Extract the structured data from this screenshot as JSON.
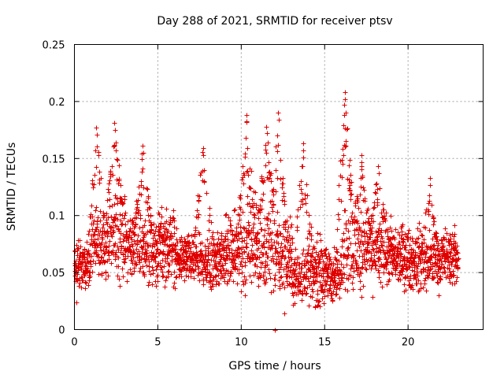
{
  "chart_data": {
    "type": "scatter",
    "title": "Day 288 of 2021, SRMTID for receiver ptsv",
    "xlabel": "GPS time / hours",
    "ylabel": "SRMTID / TECUs",
    "xlim": [
      0,
      24.5
    ],
    "ylim": [
      0,
      0.25
    ],
    "xticks": [
      0,
      5,
      10,
      15,
      20
    ],
    "yticks": [
      0,
      0.05,
      0.1,
      0.15,
      0.2,
      0.25
    ],
    "xtick_labels": [
      "0",
      "5",
      "10",
      "15",
      "20"
    ],
    "ytick_labels": [
      "0",
      "0.05",
      "0.1",
      "0.15",
      "0.2",
      "0.25"
    ],
    "grid": true,
    "marker": "+",
    "color": "#e00000",
    "series": [
      {
        "name": "SRMTID",
        "x_range": [
          0.0,
          23.0
        ],
        "samples_per_hour": 120,
        "baseline_by_hour": [
          0.058,
          0.075,
          0.082,
          0.074,
          0.068,
          0.074,
          0.062,
          0.06,
          0.063,
          0.068,
          0.075,
          0.072,
          0.065,
          0.05,
          0.052,
          0.047,
          0.072,
          0.07,
          0.068,
          0.064,
          0.062,
          0.06,
          0.064,
          0.066
        ],
        "spread_by_hour": [
          0.018,
          0.026,
          0.03,
          0.024,
          0.024,
          0.026,
          0.018,
          0.018,
          0.022,
          0.026,
          0.032,
          0.034,
          0.03,
          0.022,
          0.024,
          0.02,
          0.03,
          0.026,
          0.024,
          0.022,
          0.022,
          0.02,
          0.02,
          0.02
        ],
        "peaks": [
          {
            "x": 1.3,
            "y": 0.177
          },
          {
            "x": 2.4,
            "y": 0.181
          },
          {
            "x": 4.1,
            "y": 0.161
          },
          {
            "x": 7.7,
            "y": 0.159
          },
          {
            "x": 10.3,
            "y": 0.188
          },
          {
            "x": 11.5,
            "y": 0.178
          },
          {
            "x": 12.2,
            "y": 0.19
          },
          {
            "x": 13.7,
            "y": 0.163
          },
          {
            "x": 16.2,
            "y": 0.208
          },
          {
            "x": 17.2,
            "y": 0.153
          },
          {
            "x": 18.2,
            "y": 0.143
          },
          {
            "x": 21.3,
            "y": 0.133
          }
        ],
        "outliers": [
          {
            "x": 12.0,
            "y": 0.0
          },
          {
            "x": 12.6,
            "y": 0.014
          },
          {
            "x": 0.1,
            "y": 0.024
          }
        ]
      }
    ]
  }
}
